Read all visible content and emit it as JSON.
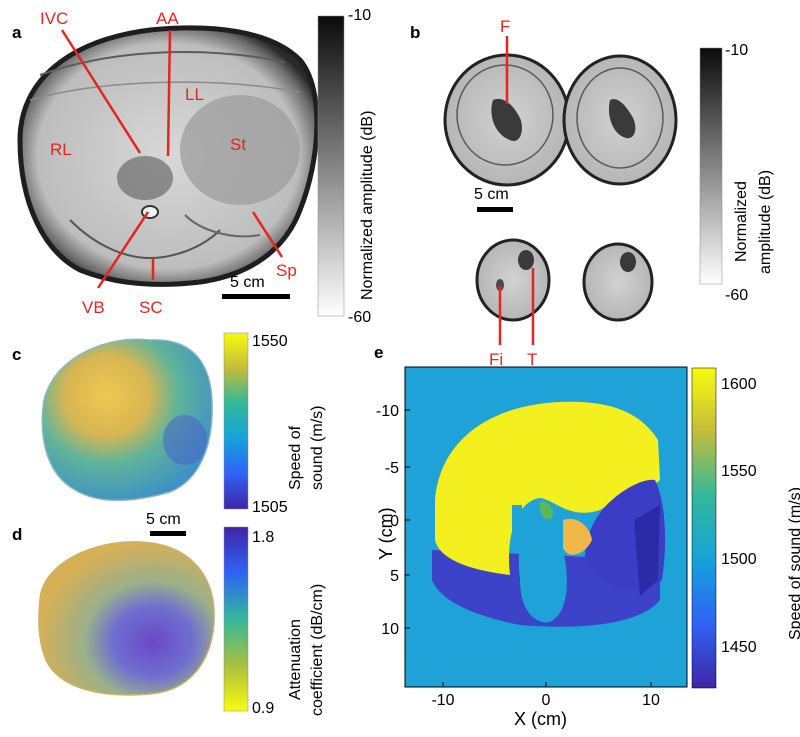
{
  "panels": {
    "a": {
      "letter": "a",
      "labels": {
        "ivc": "IVC",
        "aa": "AA",
        "ll": "LL",
        "rl": "RL",
        "st": "St",
        "vb": "VB",
        "sc": "SC",
        "sp": "Sp"
      },
      "scalebar": "5 cm",
      "colorbar": {
        "max": "-10",
        "min": "-60",
        "title": "Normalized amplitude (dB)"
      }
    },
    "b": {
      "letter": "b",
      "labels": {
        "f": "F",
        "fi": "Fi",
        "t": "T"
      },
      "scalebar": "5 cm",
      "colorbar": {
        "max": "-10",
        "min": "-60",
        "title_line1": "Normalized",
        "title_line2": "amplitude (dB)"
      }
    },
    "c": {
      "letter": "c",
      "colorbar": {
        "max": "1550",
        "min": "1505",
        "title_line1": "Speed of",
        "title_line2": "sound (m/s)"
      }
    },
    "d": {
      "letter": "d",
      "scalebar": "5 cm",
      "colorbar": {
        "max": "1.8",
        "min": "0.9",
        "title_line1": "Attenuation",
        "title_line2": "coefficient (dB/cm)"
      }
    },
    "e": {
      "letter": "e",
      "xlabel": "X (cm)",
      "ylabel": "Y (cm)",
      "xticks": [
        "-10",
        "0",
        "10"
      ],
      "yticks": [
        "-10",
        "-5",
        "0",
        "5",
        "10"
      ],
      "colorbar": {
        "ticks": [
          "1600",
          "1550",
          "1500",
          "1450"
        ],
        "title": "Speed of sound (m/s)"
      }
    }
  },
  "colors": {
    "annotation": "#e3261e",
    "phantom_background": "#1fa2d8",
    "liver": "#f4ef1e",
    "stomach": "#3b3dc4",
    "spleen": "#2b2ba8",
    "lower": "#3d43c8"
  }
}
